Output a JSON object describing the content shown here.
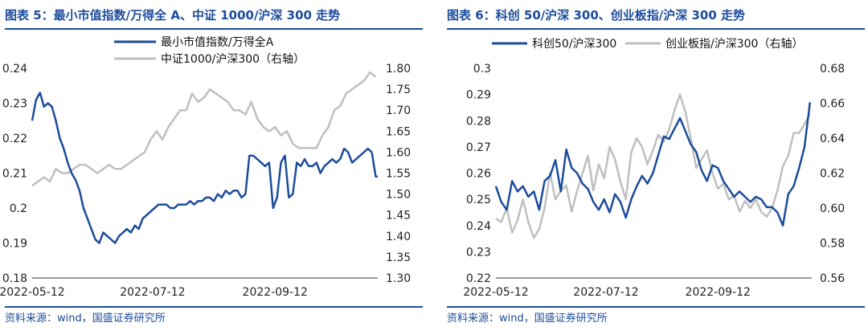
{
  "colors": {
    "accent": "#1c4c9c",
    "gray": "#bfbfbf"
  },
  "charts": [
    {
      "title": "图表 5：最小市值指数/万得全 A、中证 1000/沪深 300 走势",
      "source": "资料来源：wind，国盛证券研究所"
    },
    {
      "title": "图表 6：科创 50/沪深 300、创业板指/沪深 300 走势",
      "source": "资料来源：wind，国盛证券研究所"
    }
  ],
  "chart_data": [
    {
      "type": "line",
      "title": "图表 5：最小市值指数/万得全 A、中证 1000/沪深 300 走势",
      "x_ticks": [
        "2022-05-12",
        "2022-07-12",
        "2022-09-12"
      ],
      "x_tick_pos": [
        0,
        61,
        123
      ],
      "x_range": [
        0,
        175
      ],
      "y_left": {
        "range": [
          0.18,
          0.24
        ],
        "ticks": [
          "0.18",
          "0.19",
          "0.2",
          "0.21",
          "0.22",
          "0.23",
          "0.24"
        ]
      },
      "y_right": {
        "range": [
          1.3,
          1.8
        ],
        "ticks": [
          "1.30",
          "1.35",
          "1.40",
          "1.45",
          "1.50",
          "1.55",
          "1.60",
          "1.65",
          "1.70",
          "1.75",
          "1.80"
        ]
      },
      "legend": [
        "最小市值指数/万得全A",
        "中证1000/沪深300（右轴）"
      ],
      "series": [
        {
          "name": "最小市值指数/万得全A",
          "axis": "left",
          "color": "#1c4c9c",
          "x": [
            0,
            2,
            4,
            6,
            8,
            10,
            12,
            14,
            16,
            18,
            20,
            22,
            24,
            26,
            28,
            30,
            32,
            34,
            36,
            38,
            40,
            42,
            44,
            46,
            48,
            50,
            52,
            54,
            56,
            58,
            60,
            62,
            64,
            66,
            68,
            70,
            72,
            74,
            76,
            78,
            80,
            82,
            84,
            86,
            88,
            90,
            92,
            94,
            96,
            98,
            100,
            102,
            104,
            106,
            108,
            110,
            112,
            114,
            116,
            118,
            120,
            122,
            124,
            126,
            128,
            130,
            132,
            134,
            136,
            138,
            140,
            142,
            144,
            146,
            148,
            150,
            152,
            154,
            156,
            158,
            160,
            162,
            164,
            166,
            168,
            170,
            172,
            174,
            175
          ],
          "y": [
            0.225,
            0.231,
            0.233,
            0.229,
            0.23,
            0.229,
            0.225,
            0.22,
            0.217,
            0.213,
            0.21,
            0.208,
            0.205,
            0.2,
            0.197,
            0.194,
            0.191,
            0.19,
            0.193,
            0.192,
            0.191,
            0.19,
            0.192,
            0.193,
            0.194,
            0.193,
            0.195,
            0.194,
            0.197,
            0.198,
            0.199,
            0.2,
            0.201,
            0.201,
            0.201,
            0.2,
            0.2,
            0.201,
            0.201,
            0.201,
            0.202,
            0.201,
            0.202,
            0.202,
            0.203,
            0.203,
            0.202,
            0.204,
            0.203,
            0.205,
            0.204,
            0.205,
            0.205,
            0.203,
            0.204,
            0.215,
            0.215,
            0.214,
            0.213,
            0.212,
            0.213,
            0.2,
            0.203,
            0.213,
            0.215,
            0.203,
            0.204,
            0.213,
            0.212,
            0.214,
            0.212,
            0.212,
            0.213,
            0.21,
            0.212,
            0.213,
            0.214,
            0.213,
            0.214,
            0.217,
            0.216,
            0.213,
            0.214,
            0.215,
            0.216,
            0.217,
            0.216,
            0.209,
            0.209
          ]
        },
        {
          "name": "中证1000/沪深300（右轴）",
          "axis": "right",
          "color": "#bfbfbf",
          "x": [
            0,
            3,
            6,
            9,
            12,
            15,
            18,
            21,
            24,
            27,
            30,
            33,
            36,
            39,
            42,
            45,
            48,
            51,
            54,
            57,
            60,
            63,
            66,
            69,
            72,
            75,
            78,
            81,
            84,
            87,
            90,
            93,
            96,
            99,
            102,
            105,
            108,
            111,
            114,
            117,
            120,
            123,
            126,
            129,
            132,
            135,
            138,
            141,
            144,
            147,
            150,
            153,
            156,
            159,
            162,
            165,
            168,
            171,
            174
          ],
          "y": [
            1.52,
            1.53,
            1.54,
            1.53,
            1.56,
            1.55,
            1.55,
            1.56,
            1.57,
            1.57,
            1.56,
            1.55,
            1.56,
            1.57,
            1.56,
            1.56,
            1.57,
            1.58,
            1.59,
            1.6,
            1.63,
            1.65,
            1.63,
            1.66,
            1.68,
            1.7,
            1.7,
            1.74,
            1.72,
            1.73,
            1.75,
            1.74,
            1.73,
            1.72,
            1.7,
            1.7,
            1.69,
            1.72,
            1.68,
            1.66,
            1.65,
            1.66,
            1.64,
            1.65,
            1.62,
            1.61,
            1.61,
            1.61,
            1.61,
            1.64,
            1.66,
            1.7,
            1.71,
            1.74,
            1.75,
            1.76,
            1.77,
            1.79,
            1.78
          ]
        }
      ]
    },
    {
      "type": "line",
      "title": "图表 6：科创 50/沪深 300、创业板指/沪深 300 走势",
      "x_ticks": [
        "2022-05-12",
        "2022-07-12",
        "2022-09-12"
      ],
      "x_tick_pos": [
        0,
        61,
        123
      ],
      "x_range": [
        0,
        175
      ],
      "y_left": {
        "range": [
          0.22,
          0.3
        ],
        "ticks": [
          "0.22",
          "0.23",
          "0.24",
          "0.25",
          "0.26",
          "0.27",
          "0.28",
          "0.29",
          "0.3"
        ]
      },
      "y_right": {
        "range": [
          0.56,
          0.68
        ],
        "ticks": [
          "0.56",
          "0.58",
          "0.60",
          "0.62",
          "0.64",
          "0.66",
          "0.68"
        ]
      },
      "legend": [
        "科创50/沪深300",
        "创业板指/沪深300（右轴）"
      ],
      "series": [
        {
          "name": "科创50/沪深300",
          "axis": "left",
          "color": "#1c4c9c",
          "x": [
            0,
            3,
            6,
            9,
            12,
            15,
            18,
            21,
            24,
            27,
            30,
            33,
            36,
            39,
            42,
            45,
            48,
            51,
            54,
            57,
            60,
            63,
            66,
            69,
            72,
            75,
            78,
            81,
            84,
            87,
            90,
            93,
            96,
            99,
            102,
            105,
            108,
            111,
            114,
            117,
            120,
            123,
            126,
            129,
            132,
            135,
            138,
            141,
            144,
            147,
            150,
            153,
            156,
            159,
            162,
            165,
            168,
            171,
            174
          ],
          "y": [
            0.255,
            0.249,
            0.246,
            0.257,
            0.253,
            0.255,
            0.251,
            0.253,
            0.246,
            0.257,
            0.259,
            0.265,
            0.253,
            0.269,
            0.262,
            0.26,
            0.256,
            0.254,
            0.249,
            0.246,
            0.25,
            0.245,
            0.252,
            0.249,
            0.243,
            0.25,
            0.255,
            0.259,
            0.256,
            0.26,
            0.267,
            0.274,
            0.273,
            0.277,
            0.281,
            0.276,
            0.271,
            0.268,
            0.261,
            0.257,
            0.263,
            0.262,
            0.257,
            0.254,
            0.251,
            0.253,
            0.251,
            0.249,
            0.251,
            0.25,
            0.247,
            0.247,
            0.245,
            0.24,
            0.252,
            0.255,
            0.262,
            0.27,
            0.287
          ]
        },
        {
          "name": "创业板指/沪深300（右轴）",
          "axis": "right",
          "color": "#bfbfbf",
          "x": [
            0,
            3,
            6,
            9,
            12,
            15,
            18,
            21,
            24,
            27,
            30,
            33,
            36,
            39,
            42,
            45,
            48,
            51,
            54,
            57,
            60,
            63,
            66,
            69,
            72,
            75,
            78,
            81,
            84,
            87,
            90,
            93,
            96,
            99,
            102,
            105,
            108,
            111,
            114,
            117,
            120,
            123,
            126,
            129,
            132,
            135,
            138,
            141,
            144,
            147,
            150,
            153,
            156,
            159,
            162,
            165,
            168,
            171,
            174
          ],
          "y": [
            0.594,
            0.592,
            0.6,
            0.586,
            0.593,
            0.605,
            0.592,
            0.583,
            0.588,
            0.6,
            0.62,
            0.605,
            0.61,
            0.613,
            0.598,
            0.61,
            0.62,
            0.63,
            0.61,
            0.625,
            0.617,
            0.635,
            0.628,
            0.615,
            0.605,
            0.632,
            0.64,
            0.635,
            0.625,
            0.633,
            0.642,
            0.638,
            0.645,
            0.656,
            0.665,
            0.655,
            0.64,
            0.623,
            0.628,
            0.633,
            0.62,
            0.611,
            0.614,
            0.605,
            0.607,
            0.598,
            0.604,
            0.6,
            0.605,
            0.598,
            0.595,
            0.6,
            0.61,
            0.624,
            0.63,
            0.643,
            0.643,
            0.648,
            0.654
          ]
        }
      ]
    }
  ]
}
